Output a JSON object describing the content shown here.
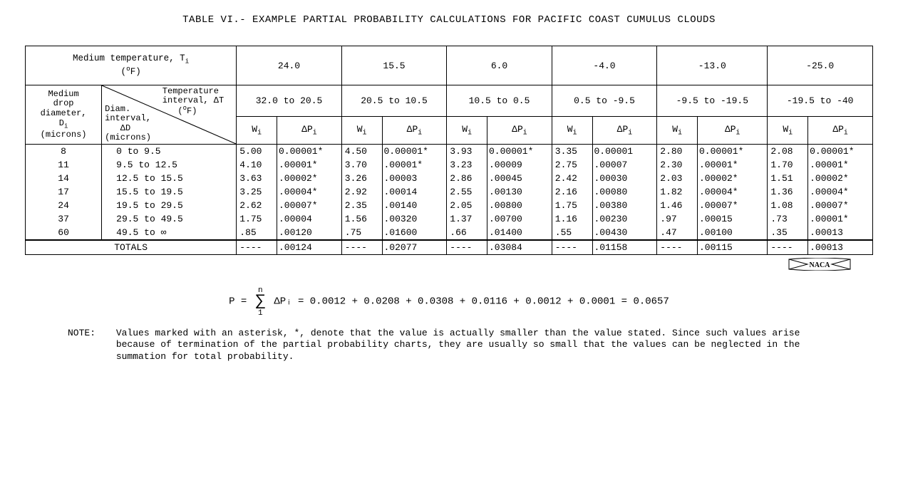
{
  "title": "TABLE VI.- EXAMPLE PARTIAL PROBABILITY CALCULATIONS FOR PACIFIC COAST CUMULUS CLOUDS",
  "header": {
    "temp_label": "Medium temperature, Tᵢ (°F)",
    "drop_label": "Medium drop diameter, Dᵢ (microns)",
    "temp_interval_label": "Temperature interval, ΔT (°F)",
    "diam_interval_label": "Diam. interval, ΔD (microns)",
    "wi": "Wᵢ",
    "dpi": "ΔPᵢ"
  },
  "columns": [
    {
      "ti": "24.0",
      "range": "32.0 to 20.5"
    },
    {
      "ti": "15.5",
      "range": "20.5 to 10.5"
    },
    {
      "ti": "6.0",
      "range": "10.5 to 0.5"
    },
    {
      "ti": "-4.0",
      "range": "0.5 to -9.5"
    },
    {
      "ti": "-13.0",
      "range": "-9.5 to -19.5"
    },
    {
      "ti": "-25.0",
      "range": "-19.5 to -40"
    }
  ],
  "rows": [
    {
      "di": "8",
      "dd": "0   to  9.5",
      "vals": [
        [
          "5.00",
          "0.00001*"
        ],
        [
          "4.50",
          "0.00001*"
        ],
        [
          "3.93",
          "0.00001*"
        ],
        [
          "3.35",
          "0.00001"
        ],
        [
          "2.80",
          "0.00001*"
        ],
        [
          "2.08",
          "0.00001*"
        ]
      ]
    },
    {
      "di": "11",
      "dd": "9.5 to 12.5",
      "vals": [
        [
          "4.10",
          ".00001*"
        ],
        [
          "3.70",
          ".00001*"
        ],
        [
          "3.23",
          ".00009"
        ],
        [
          "2.75",
          ".00007"
        ],
        [
          "2.30",
          ".00001*"
        ],
        [
          "1.70",
          ".00001*"
        ]
      ]
    },
    {
      "di": "14",
      "dd": "12.5 to 15.5",
      "vals": [
        [
          "3.63",
          ".00002*"
        ],
        [
          "3.26",
          ".00003"
        ],
        [
          "2.86",
          ".00045"
        ],
        [
          "2.42",
          ".00030"
        ],
        [
          "2.03",
          ".00002*"
        ],
        [
          "1.51",
          ".00002*"
        ]
      ]
    },
    {
      "di": "17",
      "dd": "15.5 to 19.5",
      "vals": [
        [
          "3.25",
          ".00004*"
        ],
        [
          "2.92",
          ".00014"
        ],
        [
          "2.55",
          ".00130"
        ],
        [
          "2.16",
          ".00080"
        ],
        [
          "1.82",
          ".00004*"
        ],
        [
          "1.36",
          ".00004*"
        ]
      ]
    },
    {
      "di": "24",
      "dd": "19.5 to 29.5",
      "vals": [
        [
          "2.62",
          ".00007*"
        ],
        [
          "2.35",
          ".00140"
        ],
        [
          "2.05",
          ".00800"
        ],
        [
          "1.75",
          ".00380"
        ],
        [
          "1.46",
          ".00007*"
        ],
        [
          "1.08",
          ".00007*"
        ]
      ]
    },
    {
      "di": "37",
      "dd": "29.5 to 49.5",
      "vals": [
        [
          "1.75",
          ".00004"
        ],
        [
          "1.56",
          ".00320"
        ],
        [
          "1.37",
          ".00700"
        ],
        [
          "1.16",
          ".00230"
        ],
        [
          ".97",
          ".00015"
        ],
        [
          ".73",
          ".00001*"
        ]
      ]
    },
    {
      "di": "60",
      "dd": "49.5 to   ∞",
      "vals": [
        [
          ".85",
          ".00120"
        ],
        [
          ".75",
          ".01600"
        ],
        [
          ".66",
          ".01400"
        ],
        [
          ".55",
          ".00430"
        ],
        [
          ".47",
          ".00100"
        ],
        [
          ".35",
          ".00013"
        ]
      ]
    }
  ],
  "totals": {
    "label": "TOTALS",
    "dash": "----",
    "sums": [
      ".00124",
      ".02077",
      ".03084",
      ".01158",
      ".00115",
      ".00013"
    ]
  },
  "equation": {
    "lhs": "P =",
    "sum_top": "n",
    "sum_bot": "1",
    "mid": "ΔPᵢ = 0.0012 + 0.0208 + 0.0308 + 0.0116 + 0.0012 + 0.0001 = 0.0657"
  },
  "naca": "NACA",
  "note": {
    "lead": "NOTE:",
    "body": "Values marked with an asterisk, *, denote that the value is actually smaller than the value stated. Since such values arise because of termination of the partial probability charts, they are usually so small that the values can be neglected in the summation for total probability."
  }
}
